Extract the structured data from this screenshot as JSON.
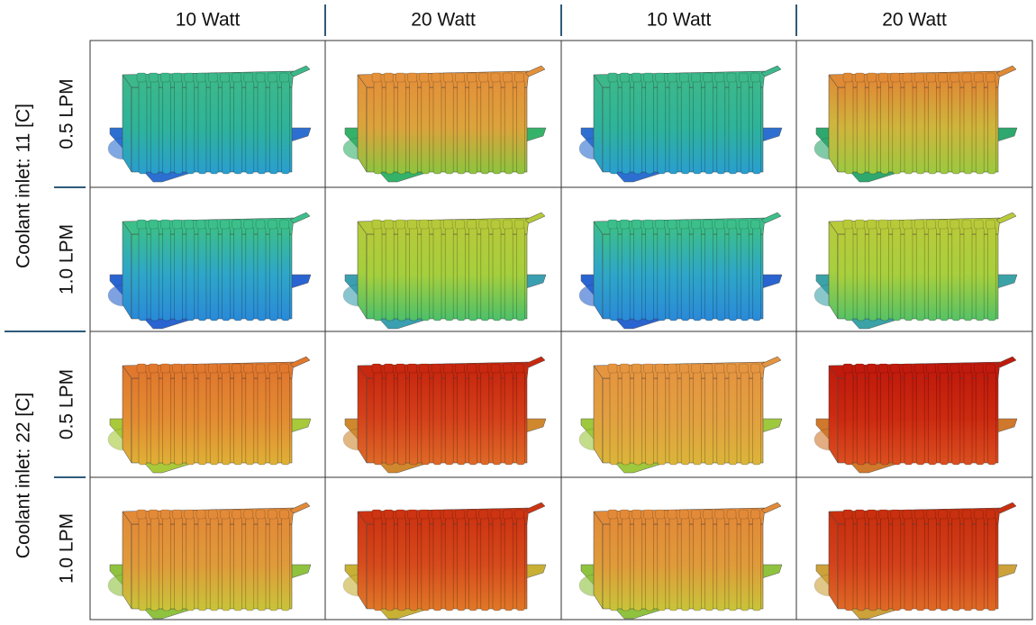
{
  "column_headers": [
    "10 Watt",
    "20 Watt",
    "10 Watt",
    "20 Watt"
  ],
  "row_groups": [
    {
      "label": "Coolant inlet: 11 [C]",
      "rows": [
        "0.5 LPM",
        "1.0 LPM"
      ]
    },
    {
      "label": "Coolant inlet: 22 [C]",
      "rows": [
        "0.5 LPM",
        "1.0 LPM"
      ]
    }
  ]
}
